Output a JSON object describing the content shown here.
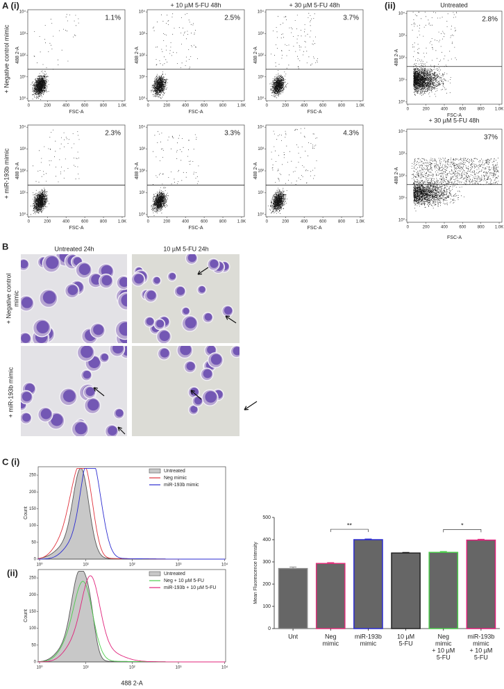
{
  "panel_a": {
    "label": "A (i)",
    "label_ii": "(ii)",
    "column_titles": [
      "+ 10 µM 5-FU 48h",
      "+ 30 µM 5-FU 48h"
    ],
    "row_labels": [
      "+ Negative control mimic",
      "+ miR-193b mimic"
    ],
    "untreated_title": "Untreated",
    "treated_title": "+ 30 µM 5-FU 48h",
    "x_label": "FSC-A",
    "y_label": "488 2-A",
    "xlim": [
      -10,
      1030
    ],
    "ylim": [
      -0.1,
      4.1
    ],
    "xticks": [
      0,
      200,
      400,
      600,
      800,
      {
        "value": 1000,
        "label": "1.0K"
      }
    ],
    "yticks": [
      {
        "value": 0,
        "label": "10⁰"
      },
      {
        "value": 1,
        "label": "10¹"
      },
      {
        "value": 2,
        "label": "10²"
      },
      {
        "value": 3,
        "label": "10³"
      },
      {
        "value": 4,
        "label": "10⁴"
      }
    ],
    "percentages": [
      [
        "1.1%",
        "2.5%",
        "3.7%"
      ],
      [
        "2.3%",
        "3.3%",
        "4.3%"
      ]
    ],
    "ii_percentages": [
      "2.8%",
      "37%"
    ]
  },
  "panel_b": {
    "label": "B",
    "column_titles": [
      "Untreated 24h",
      "10 µM 5-FU 24h"
    ],
    "row_labels": [
      [
        "+ Negative control",
        "mimic"
      ],
      [
        "+ miR-193b mimic"
      ]
    ]
  },
  "panel_c": {
    "label": "C (i)",
    "label_ii": "(ii)",
    "y_label": "Count",
    "x_label": "488 2-A",
    "ylim": [
      0,
      275
    ],
    "yticks": [
      0,
      50,
      100,
      150,
      200,
      250
    ],
    "xlim": [
      -0.03,
      4.02
    ],
    "xticks": [
      {
        "value": 0,
        "label": "10⁰"
      },
      {
        "value": 1,
        "label": "10¹"
      },
      {
        "value": 2,
        "label": "10²"
      },
      {
        "value": 3,
        "label": "10³"
      },
      {
        "value": 4,
        "label": "10⁴"
      }
    ],
    "legend_i": [
      {
        "name": "Untreated",
        "color": "#9a9a9a"
      },
      {
        "name": "Neg mimic",
        "color": "#e0303a"
      },
      {
        "name": "miR-193b mimic",
        "color": "#2a2ad0"
      }
    ],
    "legend_ii": [
      {
        "name": "Untreated",
        "color": "#9a9a9a"
      },
      {
        "name": "Neg + 10 µM 5-FU",
        "color": "#4ccc4c"
      },
      {
        "name": "miR-193b + 10 µM 5-FU",
        "color": "#e0207a"
      }
    ]
  },
  "chart_data": {
    "type": "bar",
    "y_label": "Mean Fluorescence Intensity",
    "categories": [
      [
        "Unt"
      ],
      [
        "Neg",
        "mimic"
      ],
      [
        "miR-193b",
        "mimic"
      ],
      [
        "10 µM",
        "5-FU"
      ],
      [
        "Neg",
        "mimic",
        "+ 10 µM",
        "5-FU"
      ],
      [
        "miR-193b",
        "mimic",
        "+ 10 µM",
        "5-FU"
      ]
    ],
    "values": [
      270,
      293,
      400,
      340,
      343,
      398
    ],
    "errors": [
      7,
      4,
      3,
      3,
      4,
      4
    ],
    "color": "#666666",
    "edge_colors": [
      "#888888",
      "#e0307a",
      "#2a2ad0",
      "#222222",
      "#4ccc4c",
      "#e0207a"
    ],
    "ylim": [
      0,
      500
    ],
    "yticks": [
      0,
      100,
      200,
      300,
      400,
      500
    ],
    "annotations": [
      {
        "text": "**",
        "from": 1,
        "to": 2
      },
      {
        "text": "*",
        "from": 4,
        "to": 5
      }
    ]
  }
}
